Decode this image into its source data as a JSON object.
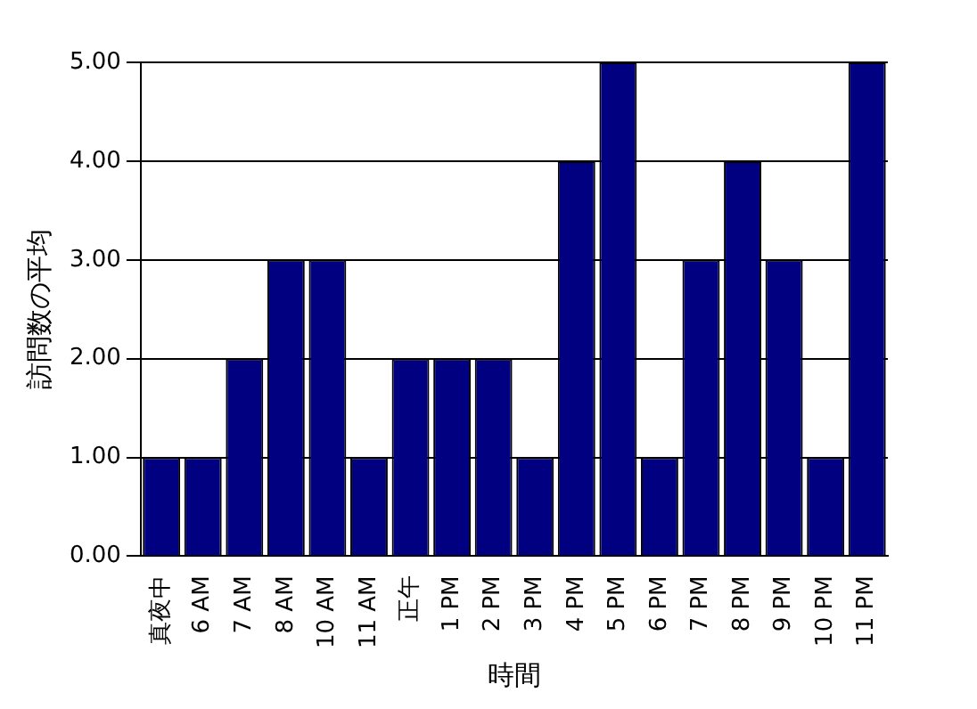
{
  "chart_data": {
    "type": "bar",
    "xlabel": "時間",
    "ylabel": "訪問数の平均",
    "categories": [
      "真夜中",
      "6 AM",
      "7 AM",
      "8 AM",
      "10 AM",
      "11 AM",
      "正午",
      "1 PM",
      "2 PM",
      "3 PM",
      "4 PM",
      "5 PM",
      "6 PM",
      "7 PM",
      "8 PM",
      "9 PM",
      "10 PM",
      "11 PM"
    ],
    "values": [
      1,
      1,
      2,
      3,
      3,
      1,
      2,
      2,
      2,
      1,
      4,
      5,
      1,
      3,
      4,
      3,
      1,
      5
    ],
    "color": "#000080",
    "ylim": [
      0,
      5
    ],
    "yticks": [
      {
        "value": 0,
        "label": "0.00"
      },
      {
        "value": 1,
        "label": "1.00"
      },
      {
        "value": 2,
        "label": "2.00"
      },
      {
        "value": 3,
        "label": "3.00"
      },
      {
        "value": 4,
        "label": "4.00"
      },
      {
        "value": 5,
        "label": "5.00"
      }
    ],
    "grid": "y",
    "legend": false
  }
}
